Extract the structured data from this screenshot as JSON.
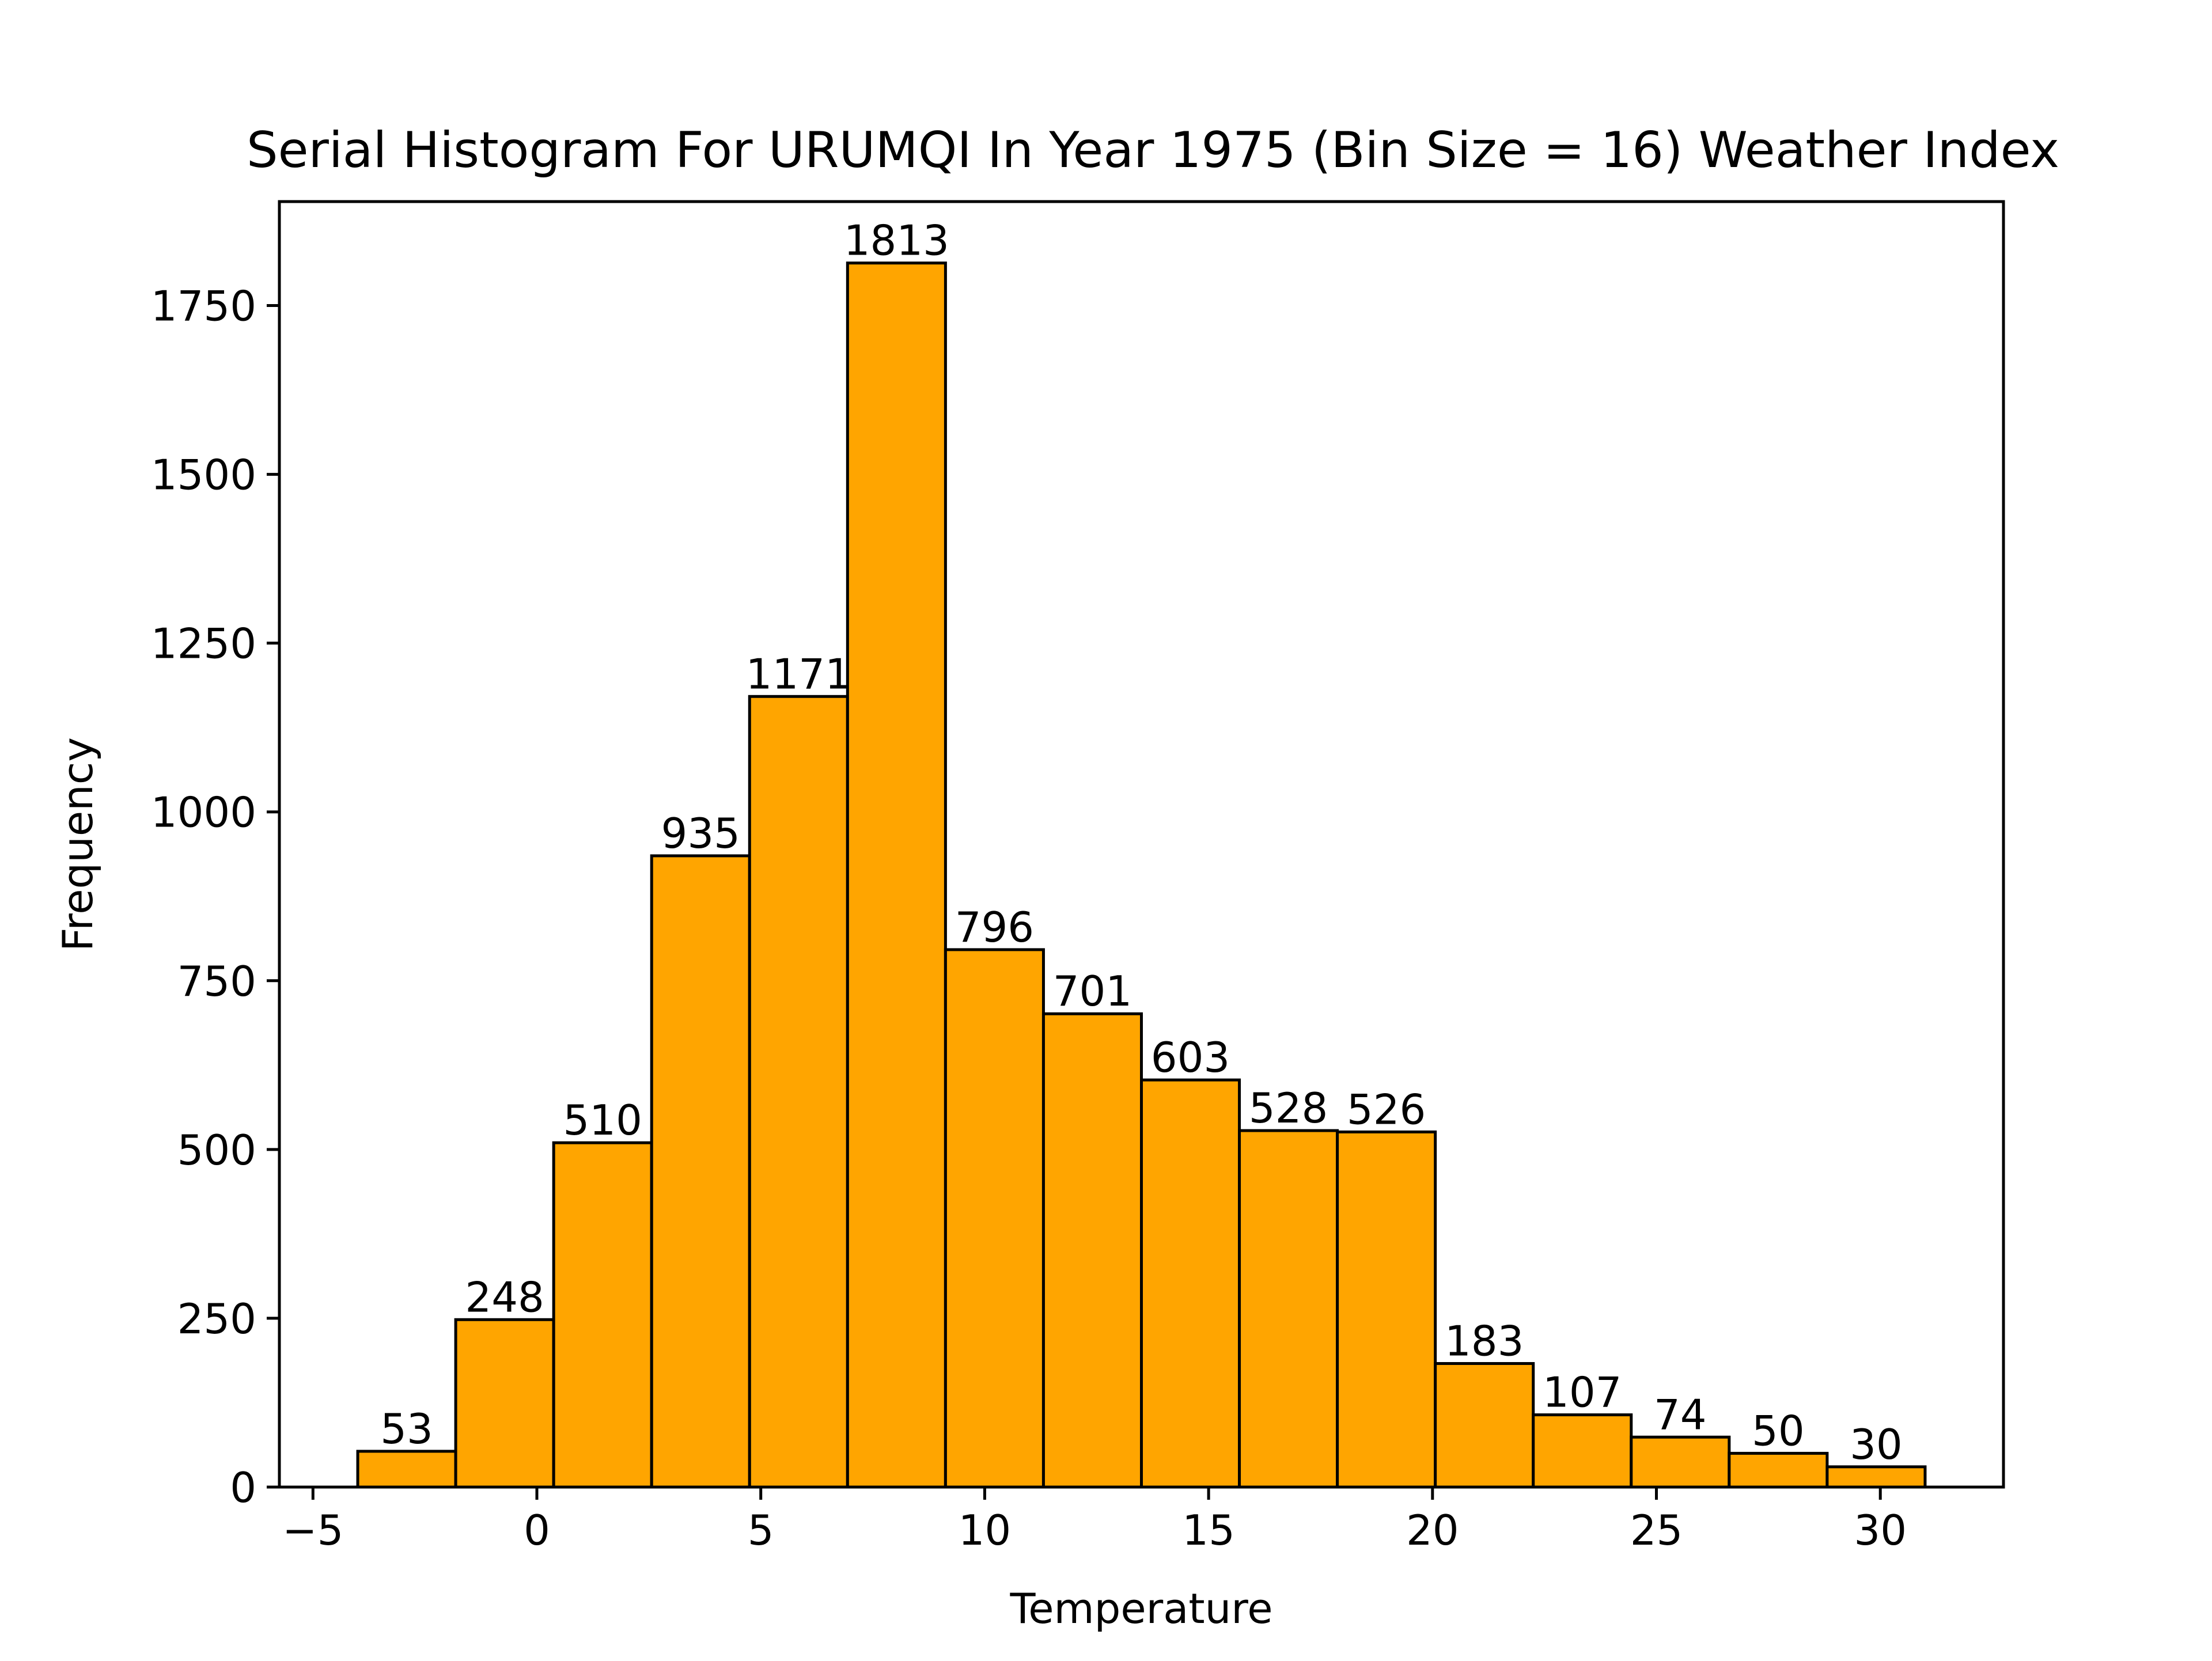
{
  "chart_data": {
    "type": "bar",
    "title": "Serial Histogram For URUMQI In Year 1975 (Bin Size = 16) Weather Index",
    "xlabel": "Temperature",
    "ylabel": "Frequency",
    "bin_edges": [
      -4.0,
      -1.8125,
      0.375,
      2.5625,
      4.75,
      6.9375,
      9.125,
      11.3125,
      13.5,
      15.6875,
      17.875,
      20.0625,
      22.25,
      24.4375,
      26.625,
      28.8125,
      31.0
    ],
    "values": [
      53,
      248,
      510,
      935,
      1171,
      1813,
      796,
      701,
      603,
      528,
      526,
      183,
      107,
      74,
      50,
      30
    ],
    "value_labels": [
      "53",
      "248",
      "510",
      "935",
      "1171",
      "1813",
      "796",
      "701",
      "603",
      "528",
      "526",
      "183",
      "107",
      "74",
      "50",
      "30"
    ],
    "xlim": [
      -5.75,
      32.75
    ],
    "ylim": [
      0,
      1904
    ],
    "x_ticks": [
      -5,
      0,
      5,
      10,
      15,
      20,
      25,
      30
    ],
    "x_tick_labels": [
      "−5",
      "0",
      "5",
      "10",
      "15",
      "20",
      "25",
      "30"
    ],
    "y_ticks": [
      0,
      250,
      500,
      750,
      1000,
      1250,
      1500,
      1750
    ],
    "y_tick_labels": [
      "0",
      "250",
      "500",
      "750",
      "1000",
      "1250",
      "1500",
      "1750"
    ],
    "bar_color": "#FFA500",
    "edge_color": "#000000",
    "grid": false,
    "legend": "none"
  }
}
